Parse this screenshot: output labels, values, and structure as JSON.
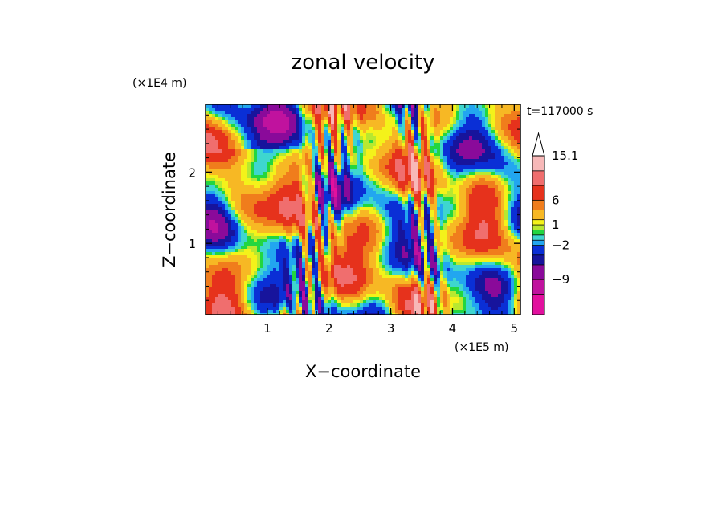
{
  "chart_data": {
    "type": "heatmap",
    "title": "zonal velocity",
    "xlabel": "X−coordinate",
    "ylabel": "Z−coordinate",
    "x_scale_label": "(×1E5 m)",
    "y_scale_label": "(×1E4 m)",
    "time_label": "t=117000 s",
    "xlim": [
      0,
      5.1
    ],
    "ylim": [
      0,
      2.95
    ],
    "x_ticks": [
      1,
      2,
      3,
      4,
      5
    ],
    "y_ticks": [
      1,
      2
    ],
    "x_tick_labels": [
      "1",
      "2",
      "3",
      "4",
      "5"
    ],
    "y_tick_labels": [
      "1",
      "2"
    ],
    "colorbar": {
      "labels": [
        {
          "value": 15.1,
          "text": "15.1"
        },
        {
          "value": 6,
          "text": "6"
        },
        {
          "value": 1,
          "text": "1"
        },
        {
          "value": -2,
          "text": "−2"
        },
        {
          "value": -9,
          "text": "−9"
        }
      ],
      "levels": [
        {
          "lo": -20,
          "hi": -12,
          "color": "#e2109e"
        },
        {
          "lo": -12,
          "hi": -9,
          "color": "#c0129e"
        },
        {
          "lo": -9,
          "hi": -6,
          "color": "#8a0a9a"
        },
        {
          "lo": -6,
          "hi": -4,
          "color": "#17149c"
        },
        {
          "lo": -4,
          "hi": -2,
          "color": "#0a2fd6"
        },
        {
          "lo": -2,
          "hi": -1,
          "color": "#22a6f0"
        },
        {
          "lo": -1,
          "hi": 0,
          "color": "#3ed6cf"
        },
        {
          "lo": 0,
          "hi": 0.5,
          "color": "#22d640"
        },
        {
          "lo": 0.5,
          "hi": 1,
          "color": "#b8e830"
        },
        {
          "lo": 1,
          "hi": 2,
          "color": "#f4f21a"
        },
        {
          "lo": 2,
          "hi": 4,
          "color": "#f7b824"
        },
        {
          "lo": 4,
          "hi": 6,
          "color": "#f07d1c"
        },
        {
          "lo": 6,
          "hi": 9,
          "color": "#e6321c"
        },
        {
          "lo": 9,
          "hi": 12,
          "color": "#f06e6e"
        },
        {
          "lo": 12,
          "hi": 15.1,
          "color": "#f7b8b8"
        }
      ],
      "extend": "max"
    }
  }
}
